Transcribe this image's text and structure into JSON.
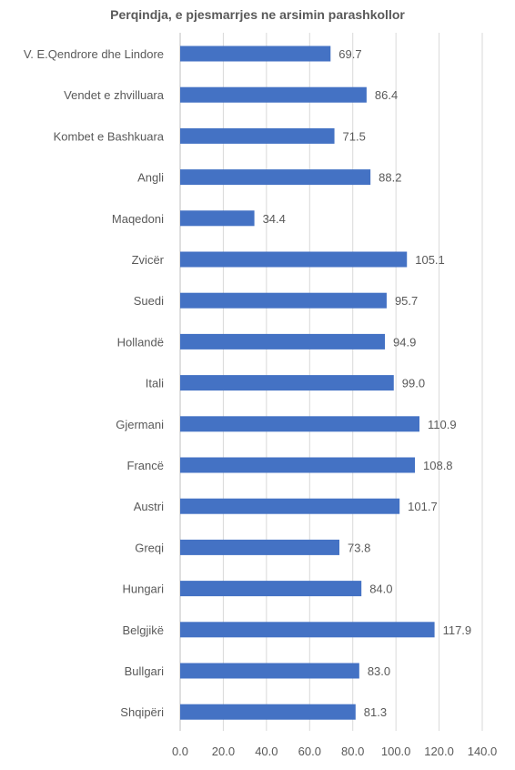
{
  "chart_data": {
    "type": "bar",
    "orientation": "horizontal",
    "title": "Perqindja, e pjesmarrjes ne arsimin parashkollor",
    "categories": [
      "V. E.Qendrore dhe Lindore",
      "Vendet e zhvilluara",
      "Kombet e Bashkuara",
      "Angli",
      "Maqedoni",
      "Zvicër",
      "Suedi",
      "Hollandë",
      "Itali",
      "Gjermani",
      "Francë",
      "Austri",
      "Greqi",
      "Hungari",
      "Belgjikë",
      "Bullgari",
      "Shqipëri"
    ],
    "values": [
      69.7,
      86.4,
      71.5,
      88.2,
      34.4,
      105.1,
      95.7,
      94.9,
      99.0,
      110.9,
      108.8,
      101.7,
      73.8,
      84.0,
      117.9,
      83.0,
      81.3
    ],
    "value_labels": [
      "69.7",
      "86.4",
      "71.5",
      "88.2",
      "34.4",
      "105.1",
      "95.7",
      "94.9",
      "99.0",
      "110.9",
      "108.8",
      "101.7",
      "73.8",
      "84.0",
      "117.9",
      "83.0",
      "81.3"
    ],
    "xlim": [
      0,
      140
    ],
    "x_ticks": [
      "0.0",
      "20.0",
      "40.0",
      "60.0",
      "80.0",
      "100.0",
      "120.0",
      "140.0"
    ],
    "grid": true,
    "legend": "none",
    "bar_color": "#4472c4"
  }
}
